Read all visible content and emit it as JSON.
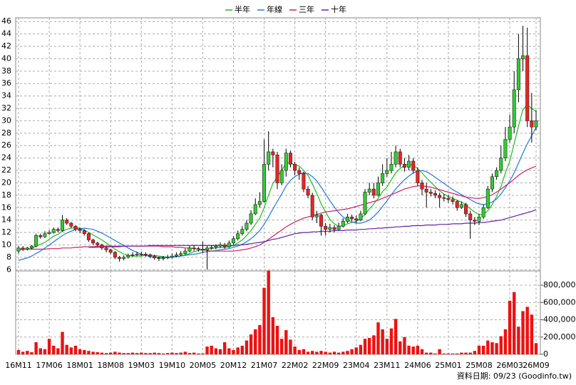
{
  "chart_data": {
    "type": "candlestick",
    "categories": [
      "16M11",
      null,
      null,
      null,
      null,
      null,
      null,
      "17M06",
      null,
      null,
      null,
      null,
      null,
      null,
      "18M01",
      null,
      null,
      null,
      null,
      null,
      null,
      "18M08",
      null,
      null,
      null,
      null,
      null,
      null,
      "19M03",
      null,
      null,
      null,
      null,
      null,
      null,
      "19M10",
      null,
      null,
      null,
      null,
      null,
      null,
      "20M05",
      null,
      null,
      null,
      null,
      null,
      null,
      "20M12",
      null,
      null,
      null,
      null,
      null,
      null,
      "21M07",
      null,
      null,
      null,
      null,
      null,
      null,
      "22M02",
      null,
      null,
      null,
      null,
      null,
      null,
      "22M09",
      null,
      null,
      null,
      null,
      null,
      null,
      "23M04",
      null,
      null,
      null,
      null,
      null,
      null,
      "23M11",
      null,
      null,
      null,
      null,
      null,
      null,
      "24M06",
      null,
      null,
      null,
      null,
      null,
      null,
      "25M01",
      null,
      null,
      null,
      null,
      null,
      null,
      "25M08",
      null,
      null,
      null,
      null,
      null,
      null,
      "26M03",
      null,
      null,
      null,
      null,
      null,
      "26M09"
    ],
    "open": [
      9.0,
      9.5,
      9.3,
      9.5,
      9.8,
      11.5,
      11.3,
      11.8,
      12,
      12.5,
      12.3,
      14,
      13.5,
      13,
      12.5,
      12.3,
      11.8,
      10.8,
      10.3,
      10,
      9.5,
      9.2,
      8.8,
      8,
      7.8,
      8,
      8.3,
      8.4,
      8.5,
      8.5,
      8.4,
      8.2,
      7.9,
      7.8,
      7.9,
      8,
      8.2,
      8.4,
      8.6,
      9,
      9.5,
      9.4,
      9.3,
      9.2,
      9.5,
      9.6,
      9.8,
      10,
      9.7,
      10.3,
      11,
      11.8,
      12.5,
      13.5,
      15,
      16.5,
      17,
      23,
      25,
      24.5,
      20,
      22,
      24.8,
      23,
      22,
      21.5,
      19,
      18,
      14.5,
      14.8,
      13,
      12.5,
      12.8,
      12.5,
      13,
      13.8,
      14.5,
      14.2,
      14,
      15,
      18.5,
      19,
      18,
      20,
      21.5,
      22,
      23,
      25,
      23,
      22.5,
      23.5,
      22,
      20,
      19,
      18.5,
      18.3,
      18,
      17.6,
      17.5,
      17.3,
      17,
      16,
      16.5,
      15,
      14,
      13.8,
      14.5,
      16,
      19,
      21,
      22,
      24,
      27,
      29,
      35,
      40,
      40.5,
      30,
      29
    ],
    "high": [
      9.8,
      9.8,
      9.7,
      10,
      11.8,
      11.8,
      12.2,
      12.4,
      12.8,
      12.8,
      14.8,
      14.3,
      13.7,
      13.2,
      12.8,
      12.5,
      12,
      11,
      10.5,
      10.2,
      9.7,
      9.4,
      9,
      8.2,
      8.3,
      8.6,
      8.8,
      8.9,
      8.9,
      8.8,
      8.6,
      8.4,
      8.1,
      8.2,
      8.4,
      8.6,
      8.8,
      9,
      9.4,
      9.9,
      10,
      9.7,
      10.5,
      9.9,
      10,
      10.1,
      10.4,
      10.3,
      10.7,
      11.4,
      12.3,
      13,
      14,
      15.6,
      17.5,
      18.5,
      27,
      28.3,
      25.5,
      25,
      23,
      25.5,
      25.2,
      23.4,
      22.5,
      21.8,
      19.5,
      18.4,
      15.5,
      15,
      13.5,
      13.4,
      13.2,
      13.6,
      14.3,
      15,
      14.9,
      14.7,
      15.5,
      19,
      20,
      20,
      21,
      23,
      24,
      25,
      26,
      25.5,
      24,
      24.5,
      24,
      22.5,
      20.5,
      20,
      19,
      18.8,
      18.4,
      18.2,
      18,
      17.8,
      17.2,
      17,
      16.8,
      15.5,
      14.5,
      15,
      16.5,
      19.5,
      21.5,
      22.5,
      26,
      29,
      31,
      38,
      44,
      45.3,
      45,
      34.5,
      31.7
    ],
    "low": [
      8.6,
      9,
      9.1,
      9.3,
      9.6,
      11,
      11.1,
      11.6,
      11.8,
      12,
      12.1,
      13.2,
      12.7,
      12.2,
      11.9,
      11.5,
      10.5,
      10,
      9.7,
      9.2,
      8.8,
      8.5,
      7.7,
      7.3,
      7.5,
      7.8,
      8.1,
      8.2,
      8.2,
      8.1,
      7.9,
      7.6,
      7.4,
      7.5,
      7.7,
      7.8,
      8,
      8.2,
      8.4,
      8.8,
      9,
      8.9,
      8.7,
      6,
      9.2,
      9.3,
      9.5,
      9.4,
      9.5,
      10,
      10.7,
      11.5,
      12.2,
      13.2,
      14.8,
      16,
      16.8,
      22,
      22.5,
      19,
      19.6,
      21,
      22.5,
      21.2,
      20.5,
      18.5,
      17.5,
      14,
      13.5,
      11.5,
      11.5,
      12,
      12,
      12.3,
      12.8,
      13.5,
      13.8,
      13.5,
      13.8,
      14.8,
      18,
      17.5,
      17.8,
      19.5,
      21,
      21.5,
      22.5,
      22.5,
      21.8,
      22,
      21.5,
      19.5,
      18,
      16,
      17.8,
      17.5,
      16,
      17,
      16.8,
      16.5,
      15.5,
      15.8,
      14.5,
      11,
      13.2,
      13.2,
      14.2,
      15.8,
      18.5,
      20.5,
      21.5,
      23.5,
      26.5,
      28,
      33,
      38,
      29,
      26.5,
      28.5
    ],
    "close": [
      9.5,
      9.3,
      9.5,
      9.8,
      11.5,
      11.3,
      11.8,
      12,
      12.5,
      12.3,
      14,
      13.5,
      13,
      12.5,
      12.3,
      11.8,
      10.8,
      10.3,
      10,
      9.5,
      9.2,
      8.8,
      8,
      7.8,
      8,
      8.3,
      8.4,
      8.5,
      8.5,
      8.4,
      8.2,
      7.9,
      7.8,
      7.9,
      8,
      8.2,
      8.4,
      8.6,
      9,
      9.5,
      9.4,
      9.3,
      9.2,
      9.5,
      9.6,
      9.8,
      10,
      9.7,
      10.3,
      11,
      11.8,
      12.5,
      13.5,
      15,
      16.5,
      17,
      23,
      25,
      24.5,
      20,
      22,
      24.8,
      23,
      22,
      21.5,
      19,
      18,
      14.5,
      14.8,
      13,
      12.5,
      12.8,
      12.5,
      13,
      13.8,
      14.5,
      14.2,
      14,
      15,
      18.5,
      19,
      18,
      20,
      21.5,
      22,
      23,
      25,
      23,
      22.5,
      23.5,
      22,
      20,
      19,
      18.5,
      18.3,
      18,
      17.6,
      17.5,
      17.3,
      17,
      16,
      16.5,
      15,
      14,
      13.8,
      14.5,
      16,
      19,
      21,
      22,
      24,
      27,
      29,
      35,
      40,
      40.5,
      30,
      29,
      30
    ],
    "up_color": "#33cc33",
    "down_color": "#ee2222",
    "series": [
      {
        "name": "半年",
        "color": "#22bb22",
        "values": [
          9.2,
          9.3,
          9.3,
          9.4,
          9.8,
          10.1,
          10.4,
          10.9,
          11.4,
          11.7,
          12.2,
          12.5,
          12.7,
          12.8,
          12.7,
          12.4,
          12.0,
          11.6,
          11.2,
          10.8,
          10.3,
          9.8,
          9.3,
          8.9,
          8.5,
          8.3,
          8.2,
          8.2,
          8.2,
          8.3,
          8.3,
          8.3,
          8.2,
          8.1,
          8.0,
          8.0,
          8.1,
          8.2,
          8.4,
          8.6,
          8.9,
          9.1,
          9.2,
          9.3,
          9.4,
          9.5,
          9.6,
          9.6,
          9.7,
          9.9,
          10.3,
          10.8,
          11.5,
          12.3,
          13.3,
          14.3,
          16.0,
          18.0,
          19.9,
          21.0,
          22.0,
          23.2,
          23.2,
          22.9,
          22.7,
          22.0,
          21.2,
          19.8,
          18.3,
          16.6,
          15.3,
          14.1,
          13.4,
          13.0,
          13.1,
          13.4,
          13.6,
          13.8,
          14.2,
          14.9,
          15.8,
          16.6,
          17.5,
          18.6,
          19.3,
          20.5,
          21.6,
          22.3,
          22.8,
          23.0,
          22.8,
          22.3,
          21.6,
          20.8,
          20.1,
          19.4,
          18.7,
          18.2,
          17.8,
          17.5,
          17.2,
          16.9,
          16.5,
          15.8,
          15.3,
          14.9,
          14.9,
          15.5,
          16.5,
          17.8,
          19.4,
          21.6,
          23.5,
          26.3,
          29.2,
          31.8,
          32.6,
          32.0,
          31.5
        ]
      },
      {
        "name": "年線",
        "color": "#2277dd",
        "values": [
          7.5,
          7.7,
          7.9,
          8.2,
          8.6,
          9.0,
          9.5,
          10.0,
          10.5,
          11.0,
          11.5,
          11.9,
          12.2,
          12.5,
          12.6,
          12.7,
          12.6,
          12.5,
          12.2,
          11.9,
          11.5,
          11.1,
          10.7,
          10.3,
          9.9,
          9.5,
          9.1,
          8.8,
          8.5,
          8.3,
          8.1,
          8.0,
          8.0,
          8.0,
          8.0,
          8.1,
          8.1,
          8.2,
          8.3,
          8.4,
          8.5,
          8.6,
          8.8,
          8.9,
          9.0,
          9.1,
          9.2,
          9.3,
          9.4,
          9.6,
          9.8,
          10.1,
          10.5,
          11.0,
          11.6,
          12.3,
          13.3,
          14.5,
          15.8,
          17.0,
          18.2,
          19.5,
          20.4,
          21.0,
          21.4,
          21.6,
          21.5,
          21.0,
          20.3,
          19.3,
          18.2,
          17.1,
          16.1,
          15.2,
          14.5,
          14.0,
          13.7,
          13.5,
          13.5,
          13.7,
          14.0,
          14.6,
          15.3,
          16.2,
          17.1,
          18.1,
          19.0,
          19.8,
          20.5,
          21.1,
          21.6,
          21.9,
          22.0,
          21.8,
          21.4,
          20.9,
          20.4,
          19.9,
          19.4,
          18.9,
          18.5,
          18.1,
          17.7,
          17.3,
          16.9,
          16.6,
          16.5,
          16.6,
          16.9,
          17.4,
          18.2,
          19.2,
          20.3,
          21.6,
          23.2,
          24.8,
          26.3,
          27.6,
          28.9
        ]
      },
      {
        "name": "三年",
        "color": "#cc2266",
        "values": [
          9.3,
          9.3,
          9.3,
          9.3,
          9.3,
          9.3,
          9.3,
          9.4,
          9.4,
          9.4,
          9.5,
          9.5,
          9.5,
          9.6,
          9.6,
          9.7,
          9.7,
          9.7,
          9.8,
          9.8,
          9.8,
          9.8,
          9.8,
          9.8,
          9.8,
          9.8,
          9.8,
          9.8,
          9.8,
          9.8,
          9.8,
          9.8,
          9.8,
          9.7,
          9.7,
          9.7,
          9.6,
          9.6,
          9.5,
          9.5,
          9.4,
          9.3,
          9.2,
          9.1,
          9.0,
          9.0,
          9.0,
          9.0,
          9.0,
          9.0,
          9.1,
          9.2,
          9.3,
          9.5,
          9.7,
          10.0,
          10.4,
          10.9,
          11.4,
          11.9,
          12.4,
          12.9,
          13.3,
          13.7,
          14.0,
          14.3,
          14.5,
          14.7,
          14.9,
          15.1,
          15.3,
          15.4,
          15.5,
          15.6,
          15.7,
          15.8,
          16.0,
          16.2,
          16.4,
          16.6,
          16.8,
          17.0,
          17.2,
          17.5,
          17.8,
          18.1,
          18.4,
          18.7,
          19.0,
          19.2,
          19.4,
          19.5,
          19.5,
          19.4,
          19.3,
          19.1,
          18.9,
          18.7,
          18.5,
          18.3,
          18.1,
          17.9,
          17.7,
          17.6,
          17.5,
          17.5,
          17.6,
          17.8,
          18.1,
          18.5,
          19.0,
          19.5,
          20.0,
          20.6,
          21.2,
          21.7,
          22.1,
          22.4,
          22.7
        ]
      },
      {
        "name": "十年",
        "color": "#6622aa",
        "values": [
          null,
          null,
          null,
          null,
          null,
          null,
          null,
          null,
          null,
          null,
          null,
          null,
          null,
          null,
          null,
          null,
          9.6,
          9.6,
          9.6,
          9.7,
          9.7,
          9.7,
          9.7,
          9.7,
          9.8,
          9.8,
          9.8,
          9.8,
          9.8,
          9.8,
          9.9,
          9.9,
          9.9,
          9.9,
          9.9,
          9.9,
          9.9,
          9.9,
          9.9,
          9.9,
          9.9,
          9.9,
          9.9,
          9.9,
          9.9,
          9.9,
          9.9,
          9.9,
          9.9,
          9.9,
          10.0,
          10.0,
          10.1,
          10.2,
          10.3,
          10.4,
          10.5,
          10.7,
          10.9,
          11.0,
          11.2,
          11.4,
          11.6,
          11.8,
          11.9,
          12.0,
          12.0,
          12.1,
          12.1,
          12.2,
          12.2,
          12.2,
          12.3,
          12.3,
          12.3,
          12.4,
          12.4,
          12.4,
          12.5,
          12.5,
          12.6,
          12.6,
          12.7,
          12.7,
          12.8,
          12.8,
          12.9,
          12.9,
          13.0,
          13.0,
          13.1,
          13.1,
          13.1,
          13.2,
          13.2,
          13.2,
          13.3,
          13.3,
          13.3,
          13.4,
          13.4,
          13.4,
          13.5,
          13.5,
          13.5,
          13.6,
          13.6,
          13.7,
          13.8,
          13.9,
          14.0,
          14.2,
          14.4,
          14.6,
          14.8,
          15.0,
          15.2,
          15.4,
          15.7
        ]
      }
    ],
    "ylim": [
      5.8,
      46.6
    ],
    "yticks": [
      6,
      8,
      10,
      12,
      14,
      16,
      18,
      20,
      22,
      24,
      26,
      28,
      30,
      32,
      34,
      36,
      38,
      40,
      42,
      44,
      46
    ],
    "grid": true,
    "volume": {
      "color": "#ee1111",
      "values": [
        50000,
        30000,
        40000,
        25000,
        140000,
        70000,
        60000,
        180000,
        100000,
        70000,
        260000,
        110000,
        80000,
        100000,
        60000,
        50000,
        40000,
        30000,
        25000,
        20000,
        15000,
        20000,
        30000,
        20000,
        15000,
        15000,
        20000,
        15000,
        20000,
        15000,
        15000,
        20000,
        15000,
        10000,
        15000,
        20000,
        15000,
        20000,
        30000,
        15000,
        20000,
        10000,
        10000,
        90000,
        100000,
        70000,
        60000,
        140000,
        70000,
        50000,
        80000,
        100000,
        160000,
        230000,
        290000,
        340000,
        770000,
        970000,
        430000,
        330000,
        180000,
        280000,
        170000,
        90000,
        50000,
        60000,
        30000,
        40000,
        30000,
        40000,
        30000,
        20000,
        30000,
        20000,
        30000,
        40000,
        60000,
        80000,
        110000,
        180000,
        190000,
        220000,
        370000,
        290000,
        180000,
        300000,
        410000,
        150000,
        200000,
        100000,
        90000,
        100000,
        60000,
        20000,
        20000,
        10000,
        60000,
        10000,
        10000,
        10000,
        10000,
        20000,
        20000,
        20000,
        40000,
        100000,
        100000,
        160000,
        140000,
        130000,
        210000,
        290000,
        620000,
        720000,
        320000,
        500000,
        550000,
        460000,
        130000
      ],
      "ylim": [
        0,
        965000
      ],
      "yticks": [
        0,
        {
          "value": 200000,
          "label": "200,000"
        },
        {
          "value": 400000,
          "label": "400,000"
        },
        {
          "value": 600000,
          "label": "600,000"
        },
        {
          "value": 800000,
          "label": "800,000"
        }
      ]
    },
    "source": "資料日期: 09/23 (Goodinfo.tw)"
  }
}
